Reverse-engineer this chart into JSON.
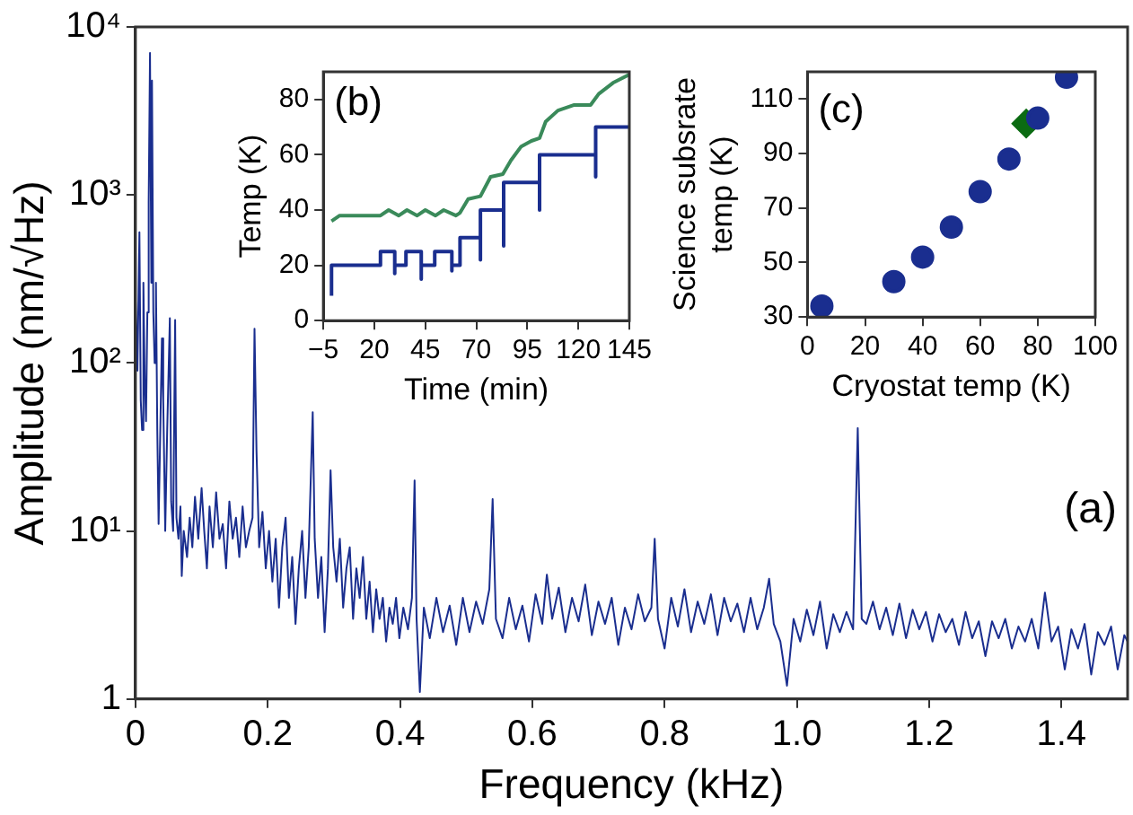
{
  "chart_data": [
    {
      "type": "line",
      "xlabel": "Frequency (kHz)",
      "ylabel": "Amplitude (nm/√Hz)",
      "log": true,
      "marker": "none",
      "color": "#1a2e8f",
      "x": [
        0.0,
        0.003,
        0.006,
        0.008,
        0.01,
        0.012,
        0.014,
        0.016,
        0.018,
        0.02,
        0.022,
        0.024,
        0.025,
        0.027,
        0.029,
        0.031,
        0.033,
        0.035,
        0.037,
        0.04,
        0.042,
        0.045,
        0.048,
        0.052,
        0.054,
        0.057,
        0.06,
        0.062,
        0.065,
        0.068,
        0.07,
        0.073,
        0.078,
        0.082,
        0.086,
        0.09,
        0.095,
        0.1,
        0.104,
        0.108,
        0.112,
        0.117,
        0.122,
        0.127,
        0.132,
        0.137,
        0.142,
        0.147,
        0.152,
        0.157,
        0.162,
        0.167,
        0.172,
        0.177,
        0.18,
        0.183,
        0.187,
        0.192,
        0.197,
        0.202,
        0.207,
        0.212,
        0.217,
        0.222,
        0.227,
        0.232,
        0.237,
        0.242,
        0.247,
        0.252,
        0.257,
        0.262,
        0.268,
        0.271,
        0.276,
        0.281,
        0.286,
        0.291,
        0.295,
        0.299,
        0.304,
        0.309,
        0.314,
        0.319,
        0.324,
        0.329,
        0.334,
        0.339,
        0.344,
        0.349,
        0.354,
        0.359,
        0.364,
        0.369,
        0.374,
        0.379,
        0.384,
        0.389,
        0.394,
        0.399,
        0.405,
        0.412,
        0.418,
        0.422,
        0.425,
        0.43,
        0.436,
        0.445,
        0.455,
        0.465,
        0.475,
        0.485,
        0.495,
        0.505,
        0.515,
        0.525,
        0.535,
        0.54,
        0.545,
        0.555,
        0.565,
        0.575,
        0.585,
        0.595,
        0.605,
        0.615,
        0.622,
        0.63,
        0.64,
        0.65,
        0.66,
        0.67,
        0.68,
        0.69,
        0.7,
        0.71,
        0.72,
        0.73,
        0.74,
        0.75,
        0.76,
        0.77,
        0.78,
        0.785,
        0.79,
        0.8,
        0.81,
        0.82,
        0.83,
        0.84,
        0.85,
        0.86,
        0.87,
        0.88,
        0.89,
        0.9,
        0.91,
        0.92,
        0.93,
        0.94,
        0.95,
        0.958,
        0.965,
        0.975,
        0.985,
        0.995,
        1.005,
        1.015,
        1.025,
        1.035,
        1.045,
        1.055,
        1.065,
        1.075,
        1.085,
        1.092,
        1.098,
        1.105,
        1.115,
        1.125,
        1.135,
        1.145,
        1.155,
        1.165,
        1.175,
        1.185,
        1.195,
        1.205,
        1.215,
        1.225,
        1.235,
        1.245,
        1.255,
        1.265,
        1.275,
        1.285,
        1.295,
        1.305,
        1.315,
        1.325,
        1.335,
        1.345,
        1.355,
        1.365,
        1.375,
        1.385,
        1.395,
        1.405,
        1.415,
        1.425,
        1.435,
        1.445,
        1.455,
        1.465,
        1.475,
        1.485,
        1.495,
        1.5
      ],
      "values": [
        250,
        90,
        600,
        60,
        40,
        300,
        80,
        45,
        200,
        900,
        7000,
        300,
        4800,
        200,
        100,
        300,
        40,
        11,
        30,
        140,
        60,
        10,
        40,
        185,
        15,
        10,
        180,
        12,
        9,
        14,
        5.4,
        10,
        7,
        12,
        8,
        16,
        9,
        18,
        10,
        6,
        14,
        8,
        17,
        9,
        11,
        6,
        15,
        9,
        12,
        7,
        14,
        8,
        10,
        12,
        160,
        30,
        8,
        13,
        6,
        10,
        5,
        9,
        3.5,
        8,
        12,
        4,
        7,
        2.8,
        6,
        10,
        4,
        8,
        51,
        9,
        4,
        7,
        2.5,
        6,
        23,
        8,
        5,
        9,
        3.5,
        6,
        8,
        3,
        6,
        4,
        7,
        3,
        5,
        2.5,
        4.5,
        3,
        4,
        2.2,
        3.5,
        2.8,
        4,
        2.3,
        3.5,
        2.6,
        4,
        20,
        3,
        1.1,
        3.5,
        2.3,
        4,
        2.5,
        3.6,
        2.1,
        4,
        2.5,
        3.8,
        2.8,
        4.5,
        15.5,
        3,
        2.3,
        4,
        2.6,
        3.6,
        2.2,
        4.2,
        2.8,
        5.5,
        3,
        4.6,
        2.5,
        4,
        2.9,
        4.8,
        2.4,
        3.8,
        2.8,
        4,
        2.1,
        3.5,
        2.6,
        4.2,
        2.9,
        3.5,
        9,
        3,
        2,
        4,
        2.7,
        4.5,
        2.5,
        3.8,
        2.8,
        4.2,
        2.4,
        4,
        2.9,
        3.7,
        2.5,
        4,
        2.6,
        3.5,
        5.2,
        2.8,
        2.2,
        1.2,
        3,
        2.2,
        3.4,
        2.4,
        3.8,
        2,
        3.2,
        2.5,
        3.3,
        2.6,
        41,
        3,
        2.8,
        3.8,
        2.6,
        3.5,
        2.4,
        3.7,
        2.3,
        3.4,
        2.6,
        3.3,
        2.2,
        3.2,
        2.5,
        3,
        2.1,
        3.3,
        2.3,
        2.9,
        1.8,
        2.9,
        2.3,
        3,
        2,
        2.7,
        2.2,
        3,
        2,
        4.3,
        2.2,
        2.7,
        1.5,
        2.6,
        2,
        2.8,
        1.4,
        2.5,
        2.1,
        2.7,
        1.5,
        2.4,
        2.2
      ],
      "xlim": [
        0,
        1.5
      ],
      "ylim": [
        1,
        10000
      ],
      "xticks": [
        0,
        0.2,
        0.4,
        0.6,
        0.8,
        {
          "value": 1,
          "label": "1.0"
        },
        1.2,
        1.4
      ],
      "yticks": [
        1,
        {
          "value": 10,
          "label": "10¹"
        },
        {
          "value": 100,
          "label": "10²"
        },
        {
          "value": 1000,
          "label": "10³"
        },
        {
          "value": 10000,
          "label": "10⁴"
        }
      ],
      "annotations": [
        "(a)"
      ]
    },
    {
      "type": "line",
      "xlabel": "Time (min)",
      "ylabel": "Temp (K)",
      "marker": "none",
      "series": [
        {
          "color": "#1a2e8f",
          "x": [
            -1,
            -1,
            23,
            23,
            30,
            30,
            30,
            35.5,
            35.5,
            43,
            43,
            43,
            49.6,
            49.6,
            58,
            58,
            58,
            62,
            62,
            72,
            72,
            72,
            83.4,
            83.4,
            83.4,
            101,
            101,
            101,
            128.5,
            128.5,
            128.5,
            145
          ],
          "values": [
            9,
            20,
            20,
            25,
            25,
            17,
            20,
            20,
            25,
            25,
            15,
            20,
            20,
            25,
            25,
            18,
            20,
            20,
            30,
            30,
            22,
            40,
            40,
            27,
            50,
            50,
            40,
            60,
            60,
            52,
            70,
            70
          ]
        },
        {
          "color": "#3a8a5a",
          "x": [
            -1,
            3,
            23,
            27,
            32,
            36,
            41,
            45,
            50,
            54,
            60,
            62,
            66,
            72,
            77,
            83,
            87,
            92,
            97,
            101,
            104,
            110,
            118,
            126,
            130,
            137,
            145
          ],
          "values": [
            36,
            38,
            38,
            40,
            38,
            40,
            38,
            40,
            38,
            40,
            38,
            39,
            44,
            45,
            52,
            53,
            58,
            63,
            65,
            66,
            72,
            76,
            78,
            78,
            82,
            86,
            89
          ]
        }
      ],
      "xlim": [
        -5,
        145
      ],
      "ylim": [
        0,
        90
      ],
      "xticks": [
        {
          "value": -5,
          "label": "−5"
        },
        20,
        45,
        70,
        95,
        120,
        145
      ],
      "yticks": [
        0,
        20,
        40,
        60,
        80
      ],
      "annotations": [
        "(b)"
      ]
    },
    {
      "type": "scatter",
      "xlabel": "Cryostat temp (K)",
      "ylabel": "Science subsrate temp (K)",
      "series": [
        {
          "color": "#1a2e8f",
          "marker": "circle",
          "x": [
            5,
            30,
            40,
            50,
            60,
            70,
            80,
            90
          ],
          "values": [
            34,
            43,
            52,
            63,
            76,
            88,
            103,
            118
          ]
        },
        {
          "color": "#0b6b12",
          "marker": "diamond",
          "x": [
            76
          ],
          "values": [
            101
          ]
        }
      ],
      "xlim": [
        0,
        100
      ],
      "ylim": [
        30,
        120
      ],
      "xticks": [
        0,
        20,
        40,
        60,
        80,
        100
      ],
      "yticks": [
        30,
        50,
        70,
        90,
        110
      ],
      "annotations": [
        "(c)"
      ]
    }
  ]
}
